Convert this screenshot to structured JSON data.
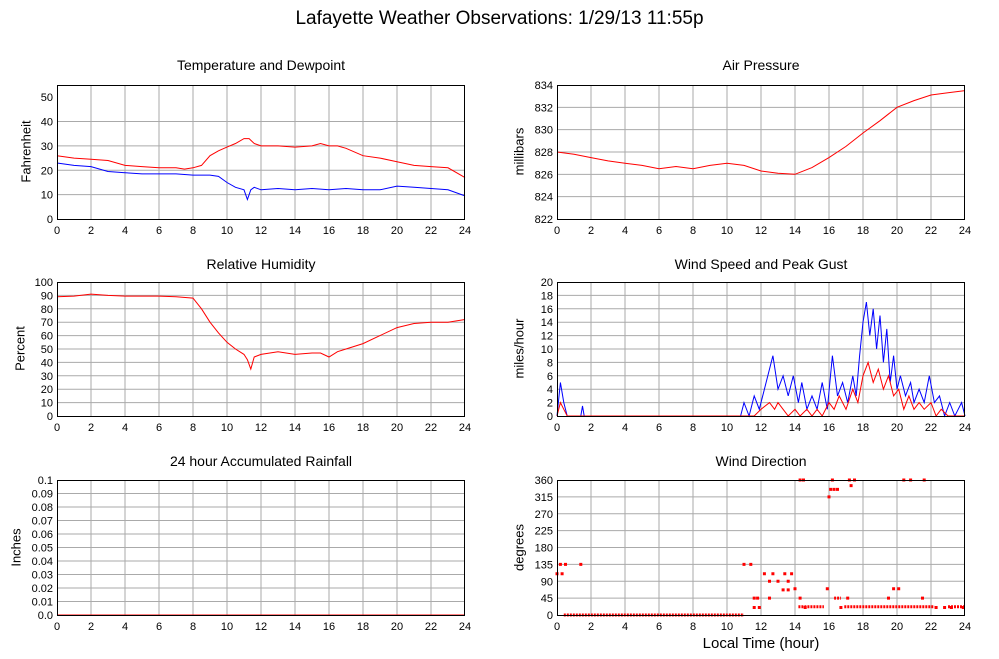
{
  "title": "Lafayette Weather Observations: 1/29/13 11:55p",
  "xlabel": "Local Time (hour)",
  "colors": {
    "red": "#ff0000",
    "blue": "#0000ff",
    "grid": "#aaaaaa"
  },
  "chart_data": [
    {
      "id": "temp",
      "type": "line",
      "title": "Temperature and Dewpoint",
      "ylabel": "Fahrenheit",
      "xlim": [
        0,
        24
      ],
      "ylim": [
        0,
        55
      ],
      "xticks": [
        0,
        2,
        4,
        6,
        8,
        10,
        12,
        14,
        16,
        18,
        20,
        22,
        24
      ],
      "yticks": [
        0,
        10,
        20,
        30,
        40,
        50
      ],
      "ytick_labels": [
        "0",
        "10",
        "20",
        "30",
        "40",
        "50"
      ],
      "grid": true,
      "series": [
        {
          "color": "#ff0000",
          "x": [
            0,
            1,
            2,
            3,
            4,
            5,
            6,
            7,
            7.5,
            8,
            8.5,
            9,
            9.5,
            10,
            10.5,
            11,
            11.3,
            11.6,
            12,
            13,
            14,
            15,
            15.5,
            16,
            16.5,
            17,
            18,
            19,
            20,
            21,
            22,
            23,
            24
          ],
          "y": [
            26,
            25,
            24.5,
            24,
            22,
            21.5,
            21,
            21,
            20.5,
            21,
            22,
            26,
            28,
            29.5,
            31,
            33,
            33,
            31,
            30,
            30,
            29.5,
            30,
            31,
            30,
            30,
            29,
            26,
            25,
            23.5,
            22,
            21.5,
            21,
            17
          ]
        },
        {
          "color": "#0000ff",
          "x": [
            0,
            1,
            2,
            3,
            4,
            5,
            6,
            7,
            8,
            9,
            9.5,
            10,
            10.5,
            11,
            11.2,
            11.4,
            11.6,
            12,
            13,
            14,
            15,
            16,
            17,
            18,
            19,
            20,
            21,
            22,
            23,
            24
          ],
          "y": [
            23,
            22,
            21.5,
            19.5,
            19,
            18.5,
            18.5,
            18.5,
            18,
            18,
            17.5,
            15,
            13,
            12,
            8,
            12,
            13,
            12,
            12.5,
            12,
            12.5,
            12,
            12.5,
            12,
            12,
            13.5,
            13,
            12.5,
            12,
            9.5
          ]
        }
      ]
    },
    {
      "id": "pressure",
      "type": "line",
      "title": "Air Pressure",
      "ylabel": "millibars",
      "xlim": [
        0,
        24
      ],
      "ylim": [
        822,
        834
      ],
      "xticks": [
        0,
        2,
        4,
        6,
        8,
        10,
        12,
        14,
        16,
        18,
        20,
        22,
        24
      ],
      "yticks": [
        822,
        824,
        826,
        828,
        830,
        832,
        834
      ],
      "ytick_labels": [
        "822",
        "824",
        "826",
        "828",
        "830",
        "832",
        "834"
      ],
      "grid": true,
      "series": [
        {
          "color": "#ff0000",
          "x": [
            0,
            1,
            2,
            3,
            4,
            5,
            6,
            7,
            8,
            9,
            10,
            11,
            12,
            13,
            14,
            15,
            16,
            17,
            18,
            19,
            20,
            21,
            22,
            23,
            24
          ],
          "y": [
            828,
            827.8,
            827.5,
            827.2,
            827,
            826.8,
            826.5,
            826.7,
            826.5,
            826.8,
            827,
            826.8,
            826.3,
            826.1,
            826,
            826.6,
            827.5,
            828.5,
            829.7,
            830.8,
            832,
            832.6,
            833.1,
            833.3,
            833.5
          ]
        }
      ]
    },
    {
      "id": "humidity",
      "type": "line",
      "title": "Relative Humidity",
      "ylabel": "Percent",
      "xlim": [
        0,
        24
      ],
      "ylim": [
        0,
        100
      ],
      "xticks": [
        0,
        2,
        4,
        6,
        8,
        10,
        12,
        14,
        16,
        18,
        20,
        22,
        24
      ],
      "yticks": [
        0,
        10,
        20,
        30,
        40,
        50,
        60,
        70,
        80,
        90,
        100
      ],
      "ytick_labels": [
        "0",
        "10",
        "20",
        "30",
        "40",
        "50",
        "60",
        "70",
        "80",
        "90",
        "100"
      ],
      "grid": true,
      "series": [
        {
          "color": "#ff0000",
          "x": [
            0,
            1,
            2,
            3,
            4,
            5,
            6,
            7,
            8,
            8.5,
            9,
            9.5,
            10,
            10.5,
            11,
            11.2,
            11.4,
            11.6,
            12,
            13,
            14,
            15,
            15.5,
            16,
            16.5,
            17,
            18,
            19,
            20,
            21,
            22,
            23,
            24
          ],
          "y": [
            89,
            89.5,
            91,
            90,
            89.5,
            89.5,
            89.5,
            89,
            88,
            80,
            70,
            62,
            55,
            50,
            46,
            42,
            35,
            44,
            46,
            48,
            46,
            47,
            47,
            44,
            48,
            50,
            54,
            60,
            66,
            69,
            70,
            70,
            72
          ]
        }
      ]
    },
    {
      "id": "wind",
      "type": "line",
      "title": "Wind Speed and Peak Gust",
      "ylabel": "miles/hour",
      "xlim": [
        0,
        24
      ],
      "ylim": [
        0,
        20
      ],
      "xticks": [
        0,
        2,
        4,
        6,
        8,
        10,
        12,
        14,
        16,
        18,
        20,
        22,
        24
      ],
      "yticks": [
        0,
        2,
        4,
        6,
        8,
        10,
        12,
        14,
        16,
        18,
        20
      ],
      "ytick_labels": [
        "0",
        "2",
        "4",
        "6",
        "8",
        "10",
        "12",
        "14",
        "16",
        "18",
        "20"
      ],
      "grid": true,
      "series": [
        {
          "color": "#0000ff",
          "x": [
            0,
            0.2,
            0.4,
            0.6,
            1,
            1.4,
            1.5,
            1.6,
            2,
            10.5,
            10.8,
            11,
            11.3,
            11.6,
            11.9,
            12.2,
            12.5,
            12.7,
            13,
            13.3,
            13.6,
            13.9,
            14.2,
            14.4,
            14.7,
            15,
            15.3,
            15.6,
            15.9,
            16.2,
            16.5,
            16.8,
            17.1,
            17.4,
            17.6,
            17.8,
            18,
            18.2,
            18.4,
            18.6,
            18.8,
            19,
            19.2,
            19.4,
            19.6,
            19.8,
            20,
            20.2,
            20.5,
            20.8,
            21,
            21.3,
            21.6,
            21.9,
            22.2,
            22.5,
            22.8,
            23.1,
            23.4,
            23.6,
            23.8,
            24
          ],
          "y": [
            0,
            5,
            2,
            0,
            0,
            0,
            1.5,
            0,
            0,
            0,
            0,
            2,
            0,
            3,
            1,
            4,
            7,
            9,
            4,
            6,
            3,
            6,
            2,
            5,
            1,
            3,
            1,
            5,
            1,
            9,
            3,
            5,
            2,
            6,
            3,
            9,
            14,
            17,
            12,
            16,
            10,
            15,
            8,
            13,
            5,
            9,
            4,
            6,
            3,
            5,
            2,
            4,
            2,
            6,
            2,
            3,
            0,
            2,
            0,
            1,
            2,
            0
          ]
        },
        {
          "color": "#ff0000",
          "x": [
            0,
            0.2,
            0.4,
            0.6,
            1,
            11,
            11.6,
            12,
            12.5,
            12.8,
            13,
            13.3,
            13.6,
            14,
            14.3,
            14.7,
            15,
            15.3,
            15.6,
            16,
            16.3,
            16.6,
            17,
            17.4,
            17.7,
            18,
            18.3,
            18.6,
            18.9,
            19.2,
            19.5,
            19.8,
            20.1,
            20.4,
            20.7,
            21,
            21.3,
            21.6,
            22,
            22.3,
            22.6,
            23,
            24
          ],
          "y": [
            0,
            2,
            1,
            0,
            0,
            0,
            0,
            1,
            2,
            1,
            2,
            1,
            0,
            1,
            0,
            1,
            0,
            1,
            0,
            2,
            1,
            3,
            1,
            4,
            2,
            6,
            8,
            5,
            7,
            4,
            6,
            3,
            4,
            1,
            3,
            1,
            2,
            1,
            2,
            0,
            1,
            0,
            0
          ]
        }
      ]
    },
    {
      "id": "rain",
      "type": "line",
      "title": "24 hour Accumulated Rainfall",
      "ylabel": "Inches",
      "xlim": [
        0,
        24
      ],
      "ylim": [
        0,
        0.1
      ],
      "xticks": [
        0,
        2,
        4,
        6,
        8,
        10,
        12,
        14,
        16,
        18,
        20,
        22,
        24
      ],
      "yticks": [
        0,
        0.01,
        0.02,
        0.03,
        0.04,
        0.05,
        0.06,
        0.07,
        0.08,
        0.09,
        0.1
      ],
      "ytick_labels": [
        "0.0",
        "0.01",
        "0.02",
        "0.03",
        "0.04",
        "0.05",
        "0.06",
        "0.07",
        "0.08",
        "0.09",
        "0.1"
      ],
      "grid": true,
      "series": [
        {
          "color": "#ff0000",
          "x": [
            0,
            24
          ],
          "y": [
            0,
            0
          ]
        }
      ]
    },
    {
      "id": "direction",
      "type": "scatter",
      "title": "Wind Direction",
      "ylabel": "degrees",
      "xlim": [
        0,
        24
      ],
      "ylim": [
        0,
        360
      ],
      "xticks": [
        0,
        2,
        4,
        6,
        8,
        10,
        12,
        14,
        16,
        18,
        20,
        22,
        24
      ],
      "yticks": [
        0,
        45,
        90,
        135,
        180,
        225,
        270,
        315,
        360
      ],
      "ytick_labels": [
        "0",
        "45",
        "90",
        "135",
        "180",
        "225",
        "270",
        "315",
        "360"
      ],
      "grid": true,
      "series": [
        {
          "color": "#ff0000",
          "points": [
            [
              0,
              110
            ],
            [
              0.2,
              135
            ],
            [
              0.3,
              110
            ],
            [
              0.5,
              135
            ],
            [
              1.4,
              135
            ],
            [
              14.3,
              360
            ],
            [
              14.5,
              360
            ],
            [
              16,
              315
            ],
            [
              16.2,
              360
            ],
            [
              16.1,
              335
            ],
            [
              16.3,
              335
            ],
            [
              16.5,
              335
            ],
            [
              17.2,
              360
            ],
            [
              17.5,
              360
            ],
            [
              17.3,
              345
            ],
            [
              20.4,
              360
            ],
            [
              20.8,
              360
            ],
            [
              21.6,
              360
            ],
            [
              11,
              135
            ],
            [
              11.4,
              135
            ],
            [
              11.6,
              45
            ],
            [
              11.8,
              45
            ],
            [
              12.2,
              110
            ],
            [
              12.5,
              90
            ],
            [
              12.7,
              110
            ],
            [
              13,
              90
            ],
            [
              13.4,
              110
            ],
            [
              13.6,
              90
            ],
            [
              13.8,
              110
            ],
            [
              14,
              70
            ],
            [
              14.3,
              45
            ],
            [
              15.9,
              70
            ],
            [
              17.1,
              45
            ],
            [
              19.5,
              45
            ],
            [
              19.8,
              70
            ],
            [
              20.1,
              70
            ],
            [
              21.5,
              45
            ],
            [
              11.6,
              20
            ],
            [
              11.9,
              20
            ],
            [
              12.5,
              45
            ],
            [
              13.3,
              67
            ],
            [
              13.6,
              67
            ],
            [
              14.6,
              20
            ],
            [
              16.7,
              20
            ],
            [
              22.3,
              20
            ],
            [
              22.8,
              20
            ],
            [
              23.2,
              20
            ],
            [
              23.9,
              20
            ]
          ],
          "runs": [
            [
              0.4,
              11,
              0
            ],
            [
              14.2,
              15.7,
              22
            ],
            [
              16.3,
              16.7,
              45
            ],
            [
              16.9,
              22.2,
              22
            ],
            [
              23,
              24,
              22
            ]
          ]
        }
      ]
    }
  ]
}
